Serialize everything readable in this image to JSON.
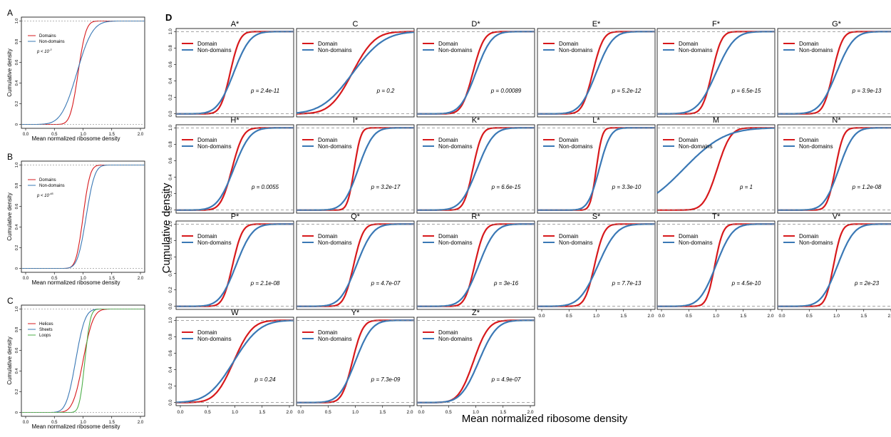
{
  "figure": {
    "big_ylabel": "Cumulative density",
    "big_xlabel": "Mean normalized ribosome density",
    "panel_D_letter": "D"
  },
  "colors": {
    "red": "#d7191c",
    "blue": "#3a78b5",
    "green": "#4daf4a",
    "dash": "#888888"
  },
  "chart_data": [
    {
      "type": "line",
      "panel": "A",
      "letter": "A",
      "xlabel": "Mean normalized ribosome density",
      "ylabel": "Cumulative density",
      "xlim": [
        0,
        2
      ],
      "ylim": [
        0,
        1
      ],
      "xticks": [
        "0.0",
        "0.5",
        "1.0",
        "1.5",
        "2.0"
      ],
      "yticks": [
        "0",
        "0.2",
        "0.4",
        "0.6",
        "0.8",
        "1.0"
      ],
      "legend": [
        "Domains",
        "Non-domains"
      ],
      "legend_position": "top-left",
      "pvalue_label": "p < 10",
      "pvalue_exp": "-3",
      "series": [
        {
          "name": "Domains",
          "color": "red",
          "mu": 0.92,
          "s": 0.1
        },
        {
          "name": "Non-domains",
          "color": "blue",
          "mu": 0.9,
          "s": 0.2
        }
      ]
    },
    {
      "type": "line",
      "panel": "B",
      "letter": "B",
      "xlabel": "Mean normalized ribosome density",
      "ylabel": "Cumulative density",
      "xlim": [
        0,
        2
      ],
      "ylim": [
        0,
        1
      ],
      "xticks": [
        "0.0",
        "0.5",
        "1.0",
        "1.5",
        "2.0"
      ],
      "yticks": [
        "0",
        "0.2",
        "0.4",
        "0.6",
        "0.8",
        "1.0"
      ],
      "legend": [
        "Domains",
        "Non-domains"
      ],
      "legend_position": "top-left",
      "pvalue_label": "p < 10",
      "pvalue_exp": "-45",
      "series": [
        {
          "name": "Domains",
          "color": "red",
          "mu": 1.0,
          "s": 0.09
        },
        {
          "name": "Non-domains",
          "color": "blue",
          "mu": 1.05,
          "s": 0.11
        }
      ]
    },
    {
      "type": "line",
      "panel": "C",
      "letter": "C",
      "xlabel": "Mean normalized ribosome density",
      "ylabel": "Cumulative density",
      "xlim": [
        0,
        2
      ],
      "ylim": [
        0,
        1
      ],
      "xticks": [
        "0.0",
        "0.5",
        "1.0",
        "1.5",
        "2.0"
      ],
      "yticks": [
        "0",
        "0.2",
        "0.4",
        "0.6",
        "0.8",
        "1.0"
      ],
      "legend": [
        "Helices",
        "Sheets",
        "Loops"
      ],
      "legend_position": "top-left",
      "pvalue_label": "",
      "series": [
        {
          "name": "Helices",
          "color": "red",
          "mu": 1.0,
          "s": 0.13
        },
        {
          "name": "Sheets",
          "color": "blue",
          "mu": 0.88,
          "s": 0.12
        },
        {
          "name": "Loops",
          "color": "green",
          "mu": 1.03,
          "s": 0.07
        }
      ]
    },
    {
      "type": "line",
      "panel": "D",
      "title": "A*",
      "pvalue": "p = 2.4e-11",
      "xlim": [
        0,
        2
      ],
      "ylim": [
        0,
        1
      ],
      "series": [
        {
          "name": "Domain",
          "color": "red",
          "mu": 0.92,
          "s": 0.13
        },
        {
          "name": "Non-domains",
          "color": "blue",
          "mu": 0.98,
          "s": 0.22
        }
      ]
    },
    {
      "type": "line",
      "panel": "D",
      "title": "C",
      "pvalue": "p = 0.2",
      "xlim": [
        0,
        2
      ],
      "ylim": [
        0,
        1
      ],
      "series": [
        {
          "name": "Domain",
          "color": "red",
          "mu": 0.95,
          "s": 0.3
        },
        {
          "name": "Non-domains",
          "color": "blue",
          "mu": 0.96,
          "s": 0.42
        }
      ]
    },
    {
      "type": "line",
      "panel": "D",
      "title": "D*",
      "pvalue": "p = 0.00089",
      "xlim": [
        0,
        2
      ],
      "ylim": [
        0,
        1
      ],
      "series": [
        {
          "name": "Domain",
          "color": "red",
          "mu": 0.95,
          "s": 0.15
        },
        {
          "name": "Non-domains",
          "color": "blue",
          "mu": 1.0,
          "s": 0.21
        }
      ]
    },
    {
      "type": "line",
      "panel": "D",
      "title": "E*",
      "pvalue": "p = 5.2e-12",
      "xlim": [
        0,
        2
      ],
      "ylim": [
        0,
        1
      ],
      "series": [
        {
          "name": "Domain",
          "color": "red",
          "mu": 0.94,
          "s": 0.14
        },
        {
          "name": "Non-domains",
          "color": "blue",
          "mu": 1.0,
          "s": 0.22
        }
      ]
    },
    {
      "type": "line",
      "panel": "D",
      "title": "F*",
      "pvalue": "p = 6.5e-15",
      "xlim": [
        0,
        2
      ],
      "ylim": [
        0,
        1
      ],
      "series": [
        {
          "name": "Domain",
          "color": "red",
          "mu": 0.93,
          "s": 0.13
        },
        {
          "name": "Non-domains",
          "color": "blue",
          "mu": 1.0,
          "s": 0.25
        }
      ]
    },
    {
      "type": "line",
      "panel": "D",
      "title": "G*",
      "pvalue": "p = 3.9e-13",
      "xlim": [
        0,
        2
      ],
      "ylim": [
        0,
        1
      ],
      "series": [
        {
          "name": "Domain",
          "color": "red",
          "mu": 0.94,
          "s": 0.13
        },
        {
          "name": "Non-domains",
          "color": "blue",
          "mu": 1.0,
          "s": 0.23
        }
      ]
    },
    {
      "type": "line",
      "panel": "D",
      "title": "H*",
      "pvalue": "p = 0.0055",
      "xlim": [
        0,
        2
      ],
      "ylim": [
        0,
        1
      ],
      "series": [
        {
          "name": "Domain",
          "color": "red",
          "mu": 0.95,
          "s": 0.15
        },
        {
          "name": "Non-domains",
          "color": "blue",
          "mu": 0.98,
          "s": 0.22
        }
      ]
    },
    {
      "type": "line",
      "panel": "D",
      "title": "I*",
      "pvalue": "p = 3.2e-17",
      "xlim": [
        0,
        2
      ],
      "ylim": [
        0,
        1
      ],
      "series": [
        {
          "name": "Domain",
          "color": "red",
          "mu": 0.98,
          "s": 0.09
        },
        {
          "name": "Non-domains",
          "color": "blue",
          "mu": 1.05,
          "s": 0.2
        }
      ]
    },
    {
      "type": "line",
      "panel": "D",
      "title": "K*",
      "pvalue": "p = 6.6e-15",
      "xlim": [
        0,
        2
      ],
      "ylim": [
        0,
        1
      ],
      "series": [
        {
          "name": "Domain",
          "color": "red",
          "mu": 0.95,
          "s": 0.12
        },
        {
          "name": "Non-domains",
          "color": "blue",
          "mu": 1.02,
          "s": 0.22
        }
      ]
    },
    {
      "type": "line",
      "panel": "D",
      "title": "L*",
      "pvalue": "p = 3.3e-10",
      "xlim": [
        0,
        2
      ],
      "ylim": [
        0,
        1
      ],
      "series": [
        {
          "name": "Domain",
          "color": "red",
          "mu": 1.0,
          "s": 0.08
        },
        {
          "name": "Non-domains",
          "color": "blue",
          "mu": 1.05,
          "s": 0.15
        }
      ]
    },
    {
      "type": "line",
      "panel": "D",
      "title": "M",
      "pvalue": "p = 1",
      "xlim": [
        0,
        2
      ],
      "ylim": [
        0,
        1
      ],
      "series": [
        {
          "name": "Domain",
          "color": "red",
          "mu": 1.02,
          "s": 0.18
        },
        {
          "name": "Non-domains",
          "color": "blue",
          "mu": 0.45,
          "s": 0.55
        }
      ]
    },
    {
      "type": "line",
      "panel": "D",
      "title": "N*",
      "pvalue": "p = 1.2e-08",
      "xlim": [
        0,
        2
      ],
      "ylim": [
        0,
        1
      ],
      "series": [
        {
          "name": "Domain",
          "color": "red",
          "mu": 0.98,
          "s": 0.11
        },
        {
          "name": "Non-domains",
          "color": "blue",
          "mu": 1.04,
          "s": 0.2
        }
      ]
    },
    {
      "type": "line",
      "panel": "D",
      "title": "P*",
      "pvalue": "p = 2.1e-08",
      "xlim": [
        0,
        2
      ],
      "ylim": [
        0,
        1
      ],
      "series": [
        {
          "name": "Domain",
          "color": "red",
          "mu": 0.96,
          "s": 0.13
        },
        {
          "name": "Non-domains",
          "color": "blue",
          "mu": 1.02,
          "s": 0.22
        }
      ]
    },
    {
      "type": "line",
      "panel": "D",
      "title": "Q*",
      "pvalue": "p = 4.7e-07",
      "xlim": [
        0,
        2
      ],
      "ylim": [
        0,
        1
      ],
      "series": [
        {
          "name": "Domain",
          "color": "red",
          "mu": 0.97,
          "s": 0.13
        },
        {
          "name": "Non-domains",
          "color": "blue",
          "mu": 1.02,
          "s": 0.22
        }
      ]
    },
    {
      "type": "line",
      "panel": "D",
      "title": "R*",
      "pvalue": "p = 3e-16",
      "xlim": [
        0,
        2
      ],
      "ylim": [
        0,
        1
      ],
      "series": [
        {
          "name": "Domain",
          "color": "red",
          "mu": 0.98,
          "s": 0.13
        },
        {
          "name": "Non-domains",
          "color": "blue",
          "mu": 1.05,
          "s": 0.22
        }
      ]
    },
    {
      "type": "line",
      "panel": "D",
      "title": "S*",
      "pvalue": "p = 7.7e-13",
      "xlim": [
        0,
        2
      ],
      "ylim": [
        0,
        1
      ],
      "series": [
        {
          "name": "Domain",
          "color": "red",
          "mu": 0.97,
          "s": 0.13
        },
        {
          "name": "Non-domains",
          "color": "blue",
          "mu": 1.03,
          "s": 0.25
        }
      ]
    },
    {
      "type": "line",
      "panel": "D",
      "title": "T*",
      "pvalue": "p = 4.5e-10",
      "xlim": [
        0,
        2
      ],
      "ylim": [
        0,
        1
      ],
      "series": [
        {
          "name": "Domain",
          "color": "red",
          "mu": 0.98,
          "s": 0.11
        },
        {
          "name": "Non-domains",
          "color": "blue",
          "mu": 1.0,
          "s": 0.22
        }
      ]
    },
    {
      "type": "line",
      "panel": "D",
      "title": "V*",
      "pvalue": "p = 2e-23",
      "xlim": [
        0,
        2
      ],
      "ylim": [
        0,
        1
      ],
      "series": [
        {
          "name": "Domain",
          "color": "red",
          "mu": 0.95,
          "s": 0.11
        },
        {
          "name": "Non-domains",
          "color": "blue",
          "mu": 1.02,
          "s": 0.22
        }
      ]
    },
    {
      "type": "line",
      "panel": "D",
      "title": "W",
      "pvalue": "p = 0.24",
      "xlim": [
        0,
        2
      ],
      "ylim": [
        0,
        1
      ],
      "series": [
        {
          "name": "Domain",
          "color": "red",
          "mu": 0.98,
          "s": 0.25
        },
        {
          "name": "Non-domains",
          "color": "blue",
          "mu": 0.98,
          "s": 0.35
        }
      ]
    },
    {
      "type": "line",
      "panel": "D",
      "title": "Y*",
      "pvalue": "p = 7.3e-09",
      "xlim": [
        0,
        2
      ],
      "ylim": [
        0,
        1
      ],
      "series": [
        {
          "name": "Domain",
          "color": "red",
          "mu": 0.95,
          "s": 0.14
        },
        {
          "name": "Non-domains",
          "color": "blue",
          "mu": 1.0,
          "s": 0.22
        }
      ]
    },
    {
      "type": "line",
      "panel": "D",
      "title": "Z*",
      "pvalue": "p = 4.9e-07",
      "xlim": [
        0,
        2
      ],
      "ylim": [
        0,
        1
      ],
      "series": [
        {
          "name": "Domain",
          "color": "red",
          "mu": 0.96,
          "s": 0.2
        },
        {
          "name": "Non-domains",
          "color": "blue",
          "mu": 1.05,
          "s": 0.24
        }
      ]
    }
  ],
  "small_panel_legend": [
    "Domain",
    "Non-domains"
  ],
  "small_panel_xticks": [
    "0.0",
    "0.5",
    "1.0",
    "1.5",
    "2.0"
  ],
  "small_panel_yticks": [
    "0.0",
    "0.2",
    "0.4",
    "0.6",
    "0.8",
    "1.0"
  ]
}
